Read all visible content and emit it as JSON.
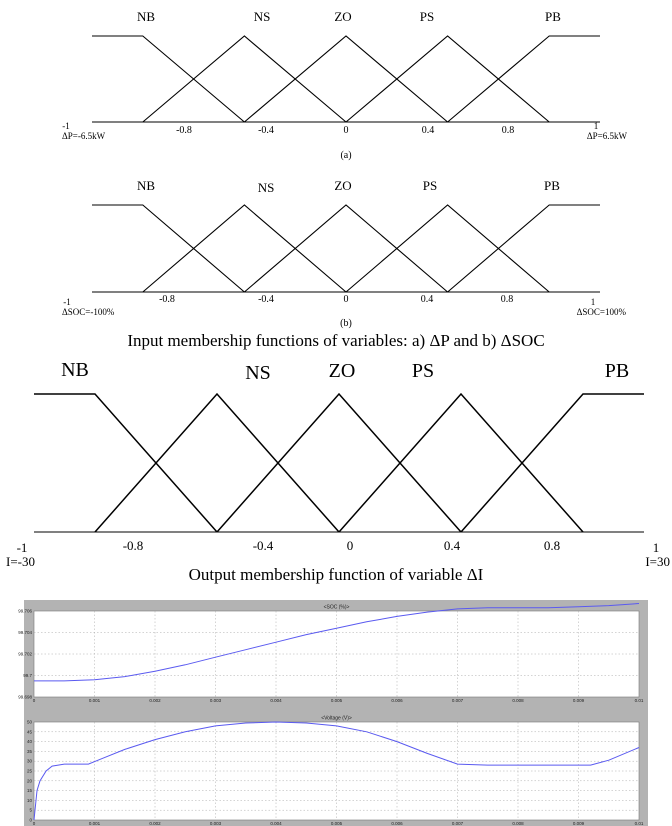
{
  "panel_a": {
    "sets": [
      "NB",
      "NS",
      "ZO",
      "PS",
      "PB"
    ],
    "ticks": [
      "-0.8",
      "-0.4",
      "0",
      "0.4",
      "0.8"
    ],
    "left_end": "-1",
    "right_end": "1",
    "left_unit": "ΔP=-6.5kW",
    "right_unit": "ΔP=6.5kW",
    "sublabel": "(a)"
  },
  "panel_b": {
    "sets": [
      "NB",
      "NS",
      "ZO",
      "PS",
      "PB"
    ],
    "ticks": [
      "-0.8",
      "-0.4",
      "0",
      "0.4",
      "0.8"
    ],
    "left_end": "-1",
    "right_end": "1",
    "left_unit": "ΔSOC=-100%",
    "right_unit": "ΔSOC=100%",
    "sublabel": "(b)"
  },
  "caption_input": "Input membership functions of variables: a) ΔP and b) ΔSOC",
  "panel_c": {
    "sets": [
      "NB",
      "NS",
      "ZO",
      "PS",
      "PB"
    ],
    "ticks": [
      "-0.8",
      "-0.4",
      "0",
      "0.4",
      "0.8"
    ],
    "left_end": "-1",
    "right_end": "1",
    "left_unit": "I=-30",
    "right_unit": "I=30"
  },
  "caption_output": "Output membership function of variable ΔI",
  "membership": {
    "points": {
      "NB": [
        [
          -1,
          1
        ],
        [
          -0.8,
          1
        ],
        [
          -0.4,
          0
        ]
      ],
      "NS": [
        [
          -0.8,
          0
        ],
        [
          -0.4,
          1
        ],
        [
          0,
          0
        ]
      ],
      "ZO": [
        [
          -0.4,
          0
        ],
        [
          0,
          1
        ],
        [
          0.4,
          0
        ]
      ],
      "PS": [
        [
          0,
          0
        ],
        [
          0.4,
          1
        ],
        [
          0.8,
          0
        ]
      ],
      "PB": [
        [
          0.4,
          0
        ],
        [
          0.8,
          1
        ],
        [
          1,
          1
        ]
      ]
    }
  },
  "chart_data": [
    {
      "type": "line",
      "title": "<SOC (%)>",
      "xlabel": "",
      "ylabel": "",
      "xlim": [
        0,
        0.01
      ],
      "ylim": [
        99.698,
        99.706
      ],
      "x_ticks": [
        "0",
        "0.001",
        "0.002",
        "0.003",
        "0.004",
        "0.005",
        "0.006",
        "0.007",
        "0.008",
        "0.009",
        "0.01"
      ],
      "y_ticks": [
        "99.698",
        "99.7",
        "99.702",
        "99.704",
        "99.706"
      ],
      "grid": true,
      "series": [
        {
          "x": [
            0,
            0.0005,
            0.001,
            0.0015,
            0.002,
            0.0025,
            0.003,
            0.0035,
            0.004,
            0.0045,
            0.005,
            0.0055,
            0.006,
            0.0065,
            0.007,
            0.0075,
            0.008,
            0.0085,
            0.009,
            0.0095,
            0.01
          ],
          "values": [
            99.6995,
            99.6995,
            99.6996,
            99.6999,
            99.7004,
            99.701,
            99.7017,
            99.7024,
            99.7031,
            99.7038,
            99.7044,
            99.705,
            99.7055,
            99.7059,
            99.7062,
            99.7063,
            99.7063,
            99.7063,
            99.7064,
            99.7065,
            99.7067
          ]
        }
      ]
    },
    {
      "type": "line",
      "title": "<Voltage (V)>",
      "xlabel": "",
      "ylabel": "",
      "xlim": [
        0,
        0.01
      ],
      "ylim": [
        0,
        50
      ],
      "x_ticks": [
        "0",
        "0.001",
        "0.002",
        "0.003",
        "0.004",
        "0.005",
        "0.006",
        "0.007",
        "0.008",
        "0.009",
        "0.01"
      ],
      "y_ticks": [
        "0",
        "5",
        "10",
        "15",
        "20",
        "25",
        "30",
        "35",
        "40",
        "45",
        "50"
      ],
      "grid": true,
      "series": [
        {
          "x": [
            0,
            5e-05,
            0.0001,
            0.0002,
            0.0003,
            0.0005,
            0.0007,
            0.0009,
            0.0011,
            0.0015,
            0.002,
            0.0025,
            0.003,
            0.0035,
            0.004,
            0.0045,
            0.005,
            0.0055,
            0.006,
            0.0065,
            0.007,
            0.0075,
            0.008,
            0.0085,
            0.009,
            0.0092,
            0.0095,
            0.01
          ],
          "values": [
            0,
            15,
            20,
            25,
            27.5,
            28.5,
            28.5,
            28.5,
            31,
            36,
            41,
            45,
            48,
            49.5,
            50,
            49.5,
            48,
            45,
            40,
            34,
            28.5,
            28,
            28,
            28,
            28,
            28,
            30.5,
            37
          ]
        }
      ]
    }
  ]
}
